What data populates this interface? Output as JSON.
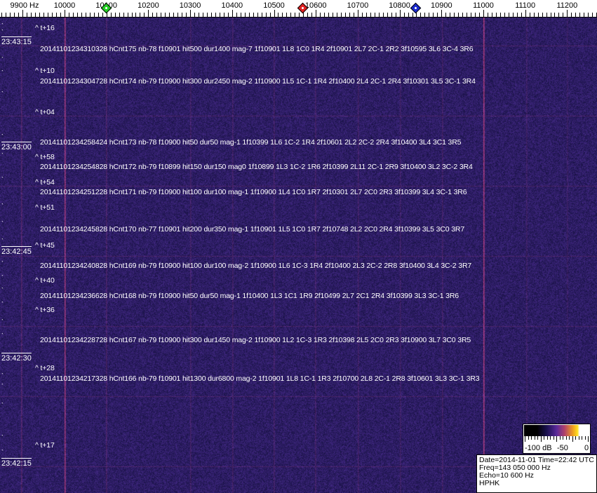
{
  "axis": {
    "unit_label": "9900 Hz",
    "tick_labels": [
      "10000",
      "10100",
      "10200",
      "10300",
      "10400",
      "10500",
      "10600",
      "10700",
      "10800",
      "10900",
      "11000",
      "11100",
      "11200"
    ],
    "markers": [
      {
        "name": "green-marker",
        "freq_hz": 10100,
        "color": "#22cc22"
      },
      {
        "name": "red-marker",
        "freq_hz": 10570,
        "color": "#dd2222"
      },
      {
        "name": "blue-marker",
        "freq_hz": 10840,
        "color": "#1a2acc"
      }
    ]
  },
  "time_labels": [
    "23:43:15",
    "23:43:00",
    "23:42:45",
    "23:42:30",
    "23:42:15"
  ],
  "annotations": [
    "^ t+16",
    "^ t+10",
    "^ t+04",
    "^ t+58",
    "^ t+54",
    "^ t+51",
    "^ t+45",
    "^ t+40",
    "^ t+36",
    "^ t+28",
    "^ t+17"
  ],
  "events": [
    "20141101234310328 hCnt175 nb-78 f10901 hit500 dur1400 mag-7 1f10901 1L8 1C0 1R4 2f10901 2L7 2C-1 2R2 3f10595 3L6 3C-4 3R6",
    "20141101234304728 hCnt174 nb-79 f10900 hit300 dur2450 mag-2 1f10900 1L5 1C-1 1R4 2f10400 2L4 2C-1 2R4 3f10301 3L5 3C-1 3R4",
    "20141101234258424 hCnt173 nb-78 f10900 hit50 dur50 mag-1 1f10399 1L6 1C-2 1R4 2f10601 2L2 2C-2 2R4 3f10400 3L4 3C1 3R5",
    "20141101234254828 hCnt172 nb-79 f10899 hit150 dur150 mag0 1f10899 1L3 1C-2 1R6 2f10399 2L11 2C-1 2R9 3f10400 3L2 3C-2 3R4",
    "20141101234251228 hCnt171 nb-79 f10900 hit100 dur100 mag-1 1f10900 1L4 1C0 1R7 2f10301 2L7 2C0 2R3 3f10399 3L4 3C-1 3R6",
    "20141101234245828 hCnt170 nb-77 f10901 hit200 dur350 mag-1 1f10901 1L5 1C0 1R7 2f10748 2L2 2C0 2R4 3f10399 3L5 3C0 3R7",
    "20141101234240828 hCnt169 nb-79 f10900 hit100 dur100 mag-2 1f10900 1L6 1C-3 1R4 2f10400 2L3 2C-2 2R8 3f10400 3L4 3C-2 3R7",
    "20141101234236628 hCnt168 nb-79 f10900 hit50 dur50 mag-1 1f10400 1L3 1C1 1R9 2f10499 2L7 2C1 2R4 3f10399 3L3 3C-1 3R6",
    "20141101234228728 hCnt167 nb-79 f10900 hit300 dur1450 mag-2 1f10900 1L2 1C-3 1R3 2f10398 2L5 2C0 2R3 3f10900 3L7 3C0 3R5",
    "20141101234217328 hCnt166 nb-79 f10901 hit1300 dur6800 mag-2 1f10901 1L8 1C-1 1R3 2f10700 2L8 2C-1 2R8 3f10601 3L3 3C-1 3R3"
  ],
  "colorbar": {
    "labels": [
      "-100 dB",
      "-50",
      "0"
    ]
  },
  "info": {
    "date_time": "Date=2014-11-01 Time=22:42 UTC",
    "freq": "Freq=143 050 000 Hz",
    "echo": "Echo=10 600 Hz",
    "station": "HPHK"
  }
}
